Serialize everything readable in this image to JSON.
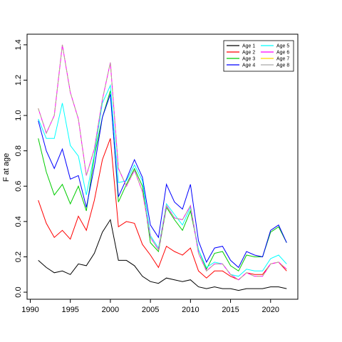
{
  "chart_data": {
    "type": "line",
    "ylabel": "F at age",
    "xlabel": "",
    "xlim": [
      1989.6,
      2023.4
    ],
    "ylim": [
      -0.04,
      1.46
    ],
    "x_ticks": [
      1990,
      1995,
      2000,
      2005,
      2010,
      2015,
      2020
    ],
    "y_ticks": [
      0.0,
      0.2,
      0.4,
      0.6,
      0.8,
      1.0,
      1.2,
      1.4
    ],
    "y_tick_labels": [
      "0.0",
      "0.2",
      "0.4",
      "0.6",
      "0.8",
      "1.0",
      "1.2",
      "1.4"
    ],
    "legend_position": "top-right",
    "x": [
      1991,
      1992,
      1993,
      1994,
      1995,
      1996,
      1997,
      1998,
      1999,
      2000,
      2001,
      2002,
      2003,
      2004,
      2005,
      2006,
      2007,
      2008,
      2009,
      2010,
      2011,
      2012,
      2013,
      2014,
      2015,
      2016,
      2017,
      2018,
      2019,
      2020,
      2021,
      2022
    ],
    "series": [
      {
        "name": "Age 1",
        "color": "#000000",
        "values": [
          0.18,
          0.14,
          0.11,
          0.12,
          0.1,
          0.16,
          0.15,
          0.22,
          0.34,
          0.41,
          0.18,
          0.18,
          0.15,
          0.09,
          0.06,
          0.05,
          0.08,
          0.07,
          0.06,
          0.07,
          0.03,
          0.02,
          0.03,
          0.02,
          0.02,
          0.01,
          0.02,
          0.02,
          0.02,
          0.03,
          0.03,
          0.02
        ]
      },
      {
        "name": "Age 2",
        "color": "#ff0000",
        "values": [
          0.52,
          0.39,
          0.31,
          0.35,
          0.3,
          0.43,
          0.35,
          0.52,
          0.75,
          0.87,
          0.37,
          0.4,
          0.39,
          0.27,
          0.21,
          0.14,
          0.26,
          0.23,
          0.21,
          0.25,
          0.12,
          0.08,
          0.12,
          0.12,
          0.09,
          0.07,
          0.11,
          0.1,
          0.1,
          0.16,
          0.17,
          0.12
        ]
      },
      {
        "name": "Age 3",
        "color": "#00cc00",
        "values": [
          0.87,
          0.68,
          0.55,
          0.61,
          0.5,
          0.6,
          0.46,
          0.77,
          0.99,
          1.14,
          0.51,
          0.61,
          0.7,
          0.6,
          0.28,
          0.23,
          0.48,
          0.41,
          0.35,
          0.46,
          0.24,
          0.13,
          0.22,
          0.23,
          0.15,
          0.12,
          0.21,
          0.2,
          0.2,
          0.34,
          0.37,
          0.28
        ]
      },
      {
        "name": "Age 4",
        "color": "#0000ff",
        "values": [
          0.97,
          0.8,
          0.7,
          0.81,
          0.64,
          0.66,
          0.48,
          0.71,
          0.99,
          1.12,
          0.54,
          0.64,
          0.75,
          0.65,
          0.38,
          0.31,
          0.61,
          0.51,
          0.47,
          0.61,
          0.29,
          0.17,
          0.25,
          0.26,
          0.18,
          0.14,
          0.23,
          0.21,
          0.2,
          0.35,
          0.38,
          0.28
        ]
      },
      {
        "name": "Age 5",
        "color": "#00ffff",
        "values": [
          0.98,
          0.87,
          0.87,
          1.07,
          0.83,
          0.77,
          0.55,
          0.78,
          1.07,
          1.17,
          0.62,
          0.63,
          0.72,
          0.63,
          0.32,
          0.25,
          0.5,
          0.44,
          0.38,
          0.48,
          0.24,
          0.14,
          0.17,
          0.16,
          0.1,
          0.09,
          0.13,
          0.12,
          0.12,
          0.19,
          0.21,
          0.16
        ]
      },
      {
        "name": "Age 6",
        "color": "#ff00ff",
        "values": [
          1.04,
          0.9,
          1.0,
          1.4,
          1.13,
          0.98,
          0.66,
          0.81,
          1.09,
          1.3,
          0.7,
          0.6,
          0.69,
          0.57,
          0.31,
          0.24,
          0.49,
          0.42,
          0.41,
          0.49,
          0.22,
          0.12,
          0.16,
          0.16,
          0.1,
          0.07,
          0.11,
          0.09,
          0.09,
          0.16,
          0.17,
          0.13
        ]
      },
      {
        "name": "Age 7",
        "color": "#ffd700",
        "values": [
          1.04,
          0.9,
          1.0,
          1.4,
          1.13,
          0.98,
          0.66,
          0.81,
          1.09,
          1.3,
          0.7,
          0.6,
          0.69,
          0.57,
          0.31,
          0.24,
          0.49,
          0.42,
          0.41,
          0.49,
          0.22,
          0.12,
          0.16,
          0.16,
          0.1,
          0.07,
          0.11,
          0.09,
          0.09,
          0.16,
          0.17,
          0.13
        ]
      },
      {
        "name": "Age 8",
        "color": "#a9a9a9",
        "values": [
          1.04,
          0.9,
          1.0,
          1.4,
          1.13,
          0.98,
          0.66,
          0.81,
          1.09,
          1.3,
          0.7,
          0.6,
          0.69,
          0.57,
          0.31,
          0.24,
          0.49,
          0.42,
          0.41,
          0.49,
          0.22,
          0.12,
          0.16,
          0.16,
          0.1,
          0.07,
          0.11,
          0.09,
          0.09,
          0.16,
          0.17,
          0.13
        ]
      }
    ]
  }
}
